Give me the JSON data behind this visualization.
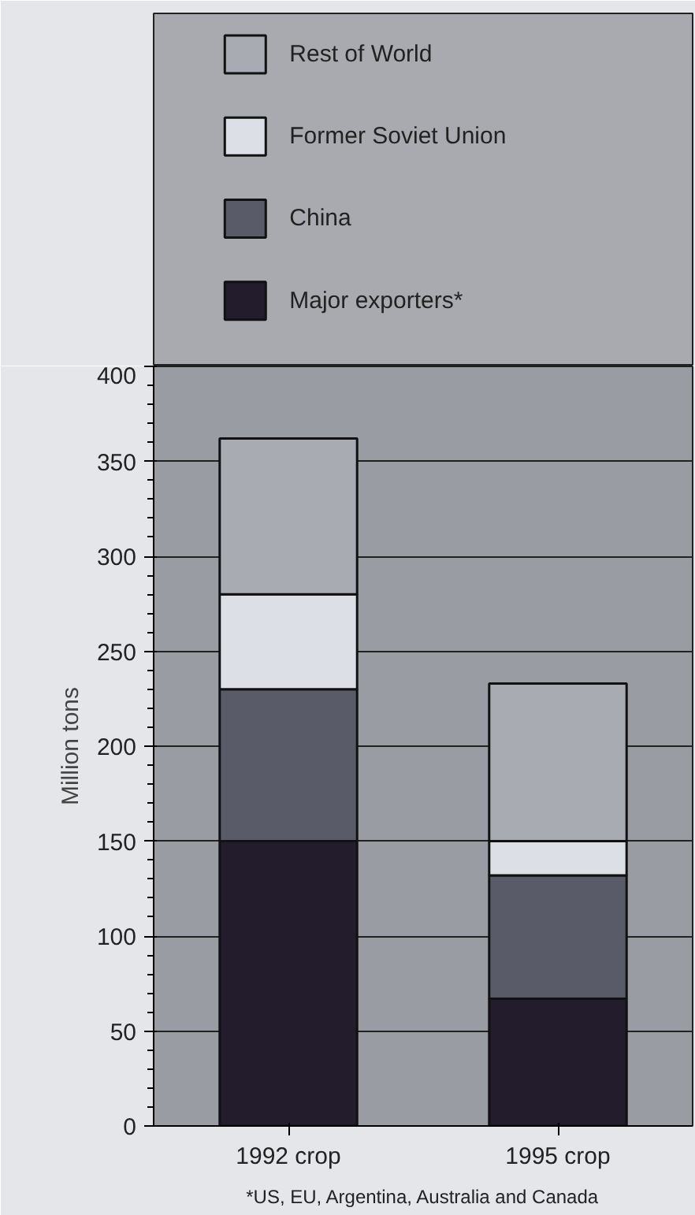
{
  "chart_data": {
    "type": "bar",
    "stacked": true,
    "ylabel": "Million tons",
    "categories": [
      "1992 crop",
      "1995 crop"
    ],
    "series": [
      {
        "name": "Major exporters*",
        "color": "#231c2c",
        "values": [
          150,
          67
        ]
      },
      {
        "name": "China",
        "color": "#5a5b68",
        "values": [
          80,
          65
        ]
      },
      {
        "name": "Former Soviet Union",
        "color": "#dcdfe6",
        "values": [
          50,
          18
        ]
      },
      {
        "name": "Rest of World",
        "color": "#a9abb2",
        "values": [
          82,
          83
        ]
      }
    ],
    "ylim": [
      0,
      400
    ],
    "yticks": [
      0,
      50,
      100,
      150,
      200,
      250,
      300,
      350,
      400
    ],
    "grid": "y",
    "legend": "top",
    "annotations": [
      "*US, EU, Argentina, Australia and Canada"
    ]
  }
}
